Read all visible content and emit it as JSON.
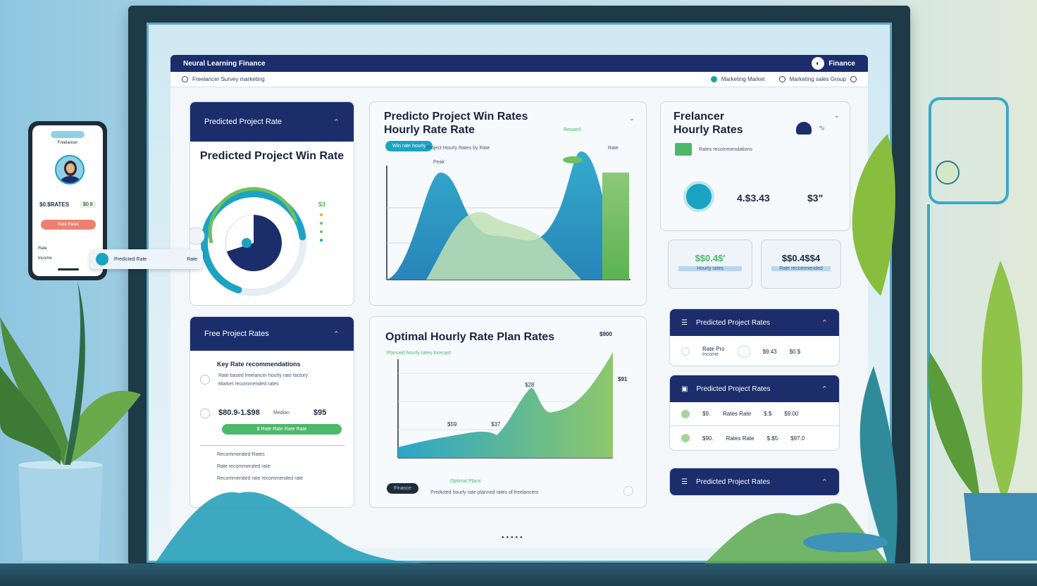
{
  "app": {
    "title": "Neural Learning Finance",
    "user_label": "Finance",
    "toolbar_left": "Freelancer Survey marketing",
    "toolbar_mid": "Marketing Market",
    "toolbar_right": "Marketing sales Group"
  },
  "win_card": {
    "header": "Predicted Project Rate",
    "title": "Predicted Project Win Rate",
    "legend_value": "$3",
    "gauge_fraction": 0.68
  },
  "chart1": {
    "title_line1": "Predicto Project Win Rates",
    "title_line2": "Hourly Rate Rate",
    "badge": "Win rate hourly",
    "legend_text": "Project Hourly Rates by Rate",
    "peak_label": "Peak",
    "right_label": "Rate",
    "top_label": "Reward"
  },
  "chart2": {
    "title": "Optimal Hourly Rate Plan Rates",
    "subtitle": "Planned hourly rates forecast",
    "corner_value": "$900",
    "peak_value": "$28",
    "labels": [
      "$59",
      "$37"
    ],
    "right_value": "$91",
    "footer_badge": "Finance",
    "footer_tag": "Optimal Plans",
    "footer_text": "Predicted hourly rate planned rates of freelancers"
  },
  "rate_card": {
    "header": "Free Project Rates",
    "section": "Key Rate recommendations",
    "desc_line1": "Rate based freelancer hourly rate factory",
    "desc_line2": "Market recommended rates",
    "value_main": "$80.9-1.$98",
    "value_label": "Median",
    "value_side": "$95",
    "green_pill": "$ Rate Rate  Rate  Rate",
    "footer_lines": [
      "Recommended Rates",
      "Rate recommended rate",
      "Recommended rate recommended rate"
    ]
  },
  "freelancer": {
    "title_line1": "Frelancer",
    "title_line2": "Hourly Rates",
    "badge_label": "Rates recommendations",
    "value1": "4.$3.43",
    "value2": "$3\"",
    "box1_value": "$$0.4$'",
    "box1_sub": "Hourly rates",
    "box2_value": "$$0.4$$4",
    "box2_sub": "Rate recommended"
  },
  "lists": {
    "list1_header": "Predicted Project Rates",
    "list1_row_label": "Rate Pro",
    "list1_row_sub": "Income",
    "list1_val1": "$9.43",
    "list1_val2": "$0.$",
    "list2_header": "Predicted Project Rates",
    "list2_rows": [
      {
        "a": "$9.",
        "b": "Rates Rate",
        "c": "$.$",
        "d": "$9.00"
      },
      {
        "a": "$90.",
        "b": "Rates Rate",
        "c": "$.$5",
        "d": "$97.0"
      }
    ],
    "list3_header": "Predicted Project Rates"
  },
  "phone": {
    "tag": "Freelancer",
    "value": "$0.$RATES",
    "chip": "$0.8",
    "button": "Rate Rates",
    "row_label": "Rate",
    "row_value": "Income"
  },
  "popout": {
    "label": "Predicted Rate",
    "value": "Rate"
  },
  "colors": {
    "navy": "#1b2d6b",
    "teal": "#1aa3c3",
    "green": "#6fbf5e",
    "accent_green": "#4cb86a"
  }
}
